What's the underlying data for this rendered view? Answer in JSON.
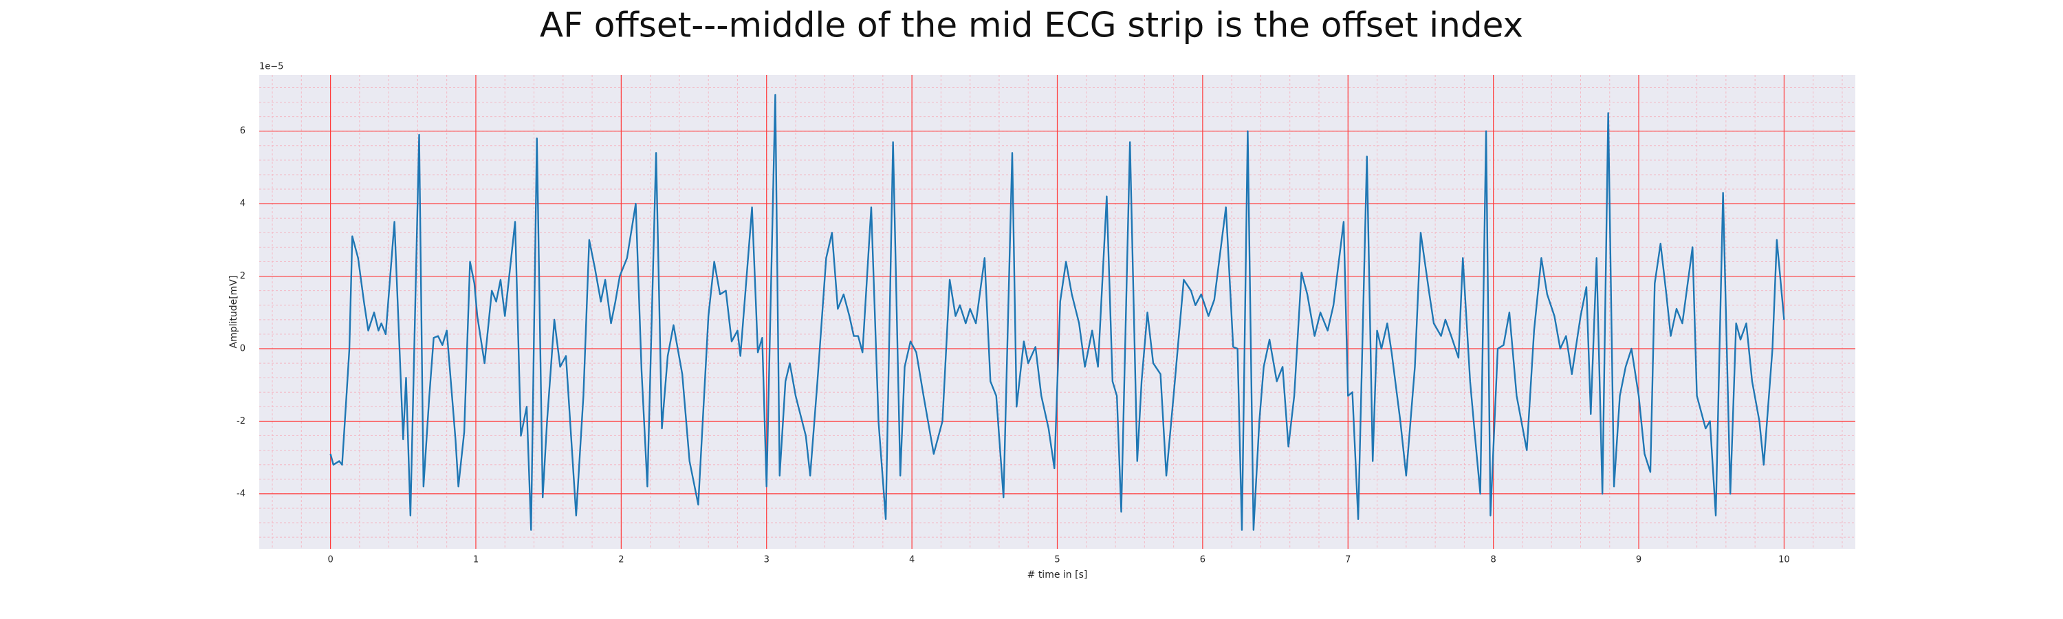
{
  "chart_data": {
    "type": "line",
    "title": "AF offset---middle of the mid ECG strip is the offset index",
    "xlabel": "# time in [s]",
    "ylabel": "Amplitude[mV]",
    "y_offset_text": "1e−5",
    "xlim": [
      -0.49,
      10.49
    ],
    "ylim": [
      -5.52,
      7.55
    ],
    "xticks": [
      0,
      1,
      2,
      3,
      4,
      5,
      6,
      7,
      8,
      9,
      10
    ],
    "yticks": [
      -4,
      -2,
      0,
      2,
      4,
      6
    ],
    "grid": true,
    "minor_grid": true,
    "grid_color": "#ff3b3b",
    "minor_grid_color": "#f4b8c4",
    "background": "#eaeaf2",
    "series": [
      {
        "color": "#1f77b4",
        "x": [
          0,
          0.02,
          0.06,
          0.08,
          0.11,
          0.13,
          0.15,
          0.19,
          0.23,
          0.26,
          0.3,
          0.33,
          0.35,
          0.38,
          0.44,
          0.5,
          0.52,
          0.55,
          0.61,
          0.64,
          0.68,
          0.71,
          0.74,
          0.77,
          0.8,
          0.86,
          0.88,
          0.92,
          0.96,
          0.99,
          1.01,
          1.06,
          1.11,
          1.14,
          1.17,
          1.2,
          1.27,
          1.31,
          1.35,
          1.38,
          1.42,
          1.46,
          1.49,
          1.54,
          1.58,
          1.62,
          1.69,
          1.74,
          1.78,
          1.82,
          1.86,
          1.89,
          1.93,
          1.96,
          1.99,
          2.04,
          2.1,
          2.14,
          2.18,
          2.24,
          2.28,
          2.32,
          2.36,
          2.42,
          2.47,
          2.53,
          2.6,
          2.64,
          2.68,
          2.72,
          2.76,
          2.8,
          2.82,
          2.9,
          2.94,
          2.97,
          3.0,
          3.06,
          3.09,
          3.13,
          3.16,
          3.2,
          3.27,
          3.3,
          3.35,
          3.41,
          3.45,
          3.49,
          3.53,
          3.57,
          3.6,
          3.63,
          3.66,
          3.72,
          3.77,
          3.82,
          3.87,
          3.92,
          3.95,
          3.99,
          4.03,
          4.08,
          4.15,
          4.21,
          4.26,
          4.3,
          4.33,
          4.37,
          4.4,
          4.44,
          4.5,
          4.54,
          4.58,
          4.63,
          4.69,
          4.72,
          4.77,
          4.8,
          4.85,
          4.89,
          4.94,
          4.98,
          5.02,
          5.06,
          5.1,
          5.15,
          5.19,
          5.24,
          5.28,
          5.34,
          5.38,
          5.41,
          5.44,
          5.5,
          5.55,
          5.58,
          5.62,
          5.66,
          5.71,
          5.75,
          5.8,
          5.87,
          5.92,
          5.95,
          5.99,
          6.04,
          6.08,
          6.16,
          6.21,
          6.24,
          6.27,
          6.31,
          6.35,
          6.39,
          6.42,
          6.46,
          6.51,
          6.55,
          6.59,
          6.63,
          6.68,
          6.72,
          6.77,
          6.81,
          6.86,
          6.9,
          6.97,
          7.0,
          7.03,
          7.07,
          7.13,
          7.17,
          7.2,
          7.23,
          7.27,
          7.3,
          7.36,
          7.4,
          7.46,
          7.5,
          7.56,
          7.59,
          7.64,
          7.67,
          7.71,
          7.76,
          7.79,
          7.84,
          7.88,
          7.91,
          7.95,
          7.98,
          8.03,
          8.07,
          8.11,
          8.16,
          8.23,
          8.28,
          8.33,
          8.37,
          8.42,
          8.46,
          8.5,
          8.54,
          8.6,
          8.64,
          8.67,
          8.71,
          8.75,
          8.79,
          8.83,
          8.87,
          8.91,
          8.95,
          9.0,
          9.04,
          9.08,
          9.11,
          9.15,
          9.19,
          9.22,
          9.26,
          9.3,
          9.37,
          9.4,
          9.46,
          9.49,
          9.53,
          9.58,
          9.63,
          9.67,
          9.7,
          9.74,
          9.78,
          9.83,
          9.86,
          9.92,
          9.95,
          10.0
        ],
        "values": [
          -2.9,
          -3.2,
          -3.1,
          -3.2,
          -1.3,
          0,
          3.1,
          2.5,
          1.3,
          0.5,
          1.0,
          0.5,
          0.7,
          0.4,
          3.5,
          -2.5,
          -0.8,
          -4.6,
          5.9,
          -3.8,
          -1.3,
          0.3,
          0.35,
          0.1,
          0.5,
          -2.5,
          -3.8,
          -2.3,
          2.4,
          1.8,
          0.9,
          -0.4,
          1.6,
          1.3,
          1.9,
          0.9,
          3.5,
          -2.4,
          -1.6,
          -5.0,
          5.8,
          -4.1,
          -2.0,
          0.8,
          -0.5,
          -0.2,
          -4.6,
          -1.3,
          3.0,
          2.2,
          1.3,
          1.9,
          0.7,
          1.3,
          2.0,
          2.5,
          4.0,
          -0.6,
          -3.8,
          5.4,
          -2.2,
          -0.2,
          0.65,
          -0.7,
          -3.1,
          -4.3,
          0.9,
          2.4,
          1.5,
          1.6,
          0.2,
          0.5,
          -0.2,
          3.9,
          -0.1,
          0.3,
          -3.8,
          7.0,
          -3.5,
          -0.9,
          -0.4,
          -1.3,
          -2.4,
          -3.5,
          -0.9,
          2.5,
          3.2,
          1.1,
          1.5,
          0.9,
          0.35,
          0.35,
          -0.1,
          3.9,
          -2.0,
          -4.7,
          5.7,
          -3.5,
          -0.5,
          0.2,
          -0.1,
          -1.3,
          -2.9,
          -2.0,
          1.9,
          0.9,
          1.2,
          0.7,
          1.1,
          0.7,
          2.5,
          -0.9,
          -1.3,
          -4.1,
          5.4,
          -1.6,
          0.2,
          -0.4,
          0.05,
          -1.3,
          -2.2,
          -3.3,
          1.3,
          2.4,
          1.5,
          0.7,
          -0.5,
          0.5,
          -0.5,
          4.2,
          -0.9,
          -1.3,
          -4.5,
          5.7,
          -3.1,
          -0.9,
          1.0,
          -0.4,
          -0.7,
          -3.5,
          -1.3,
          1.9,
          1.6,
          1.2,
          1.5,
          0.9,
          1.35,
          3.9,
          0.05,
          0,
          -5.0,
          6.0,
          -5.0,
          -2.0,
          -0.5,
          0.25,
          -0.9,
          -0.5,
          -2.7,
          -1.3,
          2.1,
          1.5,
          0.35,
          1.0,
          0.5,
          1.2,
          3.5,
          -1.3,
          -1.2,
          -4.7,
          5.3,
          -3.1,
          0.5,
          0,
          0.7,
          -0.1,
          -2.0,
          -3.5,
          -0.5,
          3.2,
          1.5,
          0.7,
          0.35,
          0.8,
          0.35,
          -0.25,
          2.5,
          -0.9,
          -2.7,
          -4.0,
          6.0,
          -4.6,
          0,
          0.1,
          1.0,
          -1.3,
          -2.8,
          0.5,
          2.5,
          1.5,
          0.9,
          0,
          0.35,
          -0.7,
          0.9,
          1.7,
          -1.8,
          2.5,
          -4.0,
          6.5,
          -3.8,
          -1.3,
          -0.5,
          0,
          -1.3,
          -2.9,
          -3.4,
          1.8,
          2.9,
          1.5,
          0.35,
          1.1,
          0.7,
          2.8,
          -1.3,
          -2.2,
          -2.0,
          -4.6,
          4.3,
          -4.0,
          0.7,
          0.25,
          0.7,
          -0.9,
          -2.0,
          -3.2,
          0,
          3.0,
          0.8
        ]
      }
    ]
  }
}
